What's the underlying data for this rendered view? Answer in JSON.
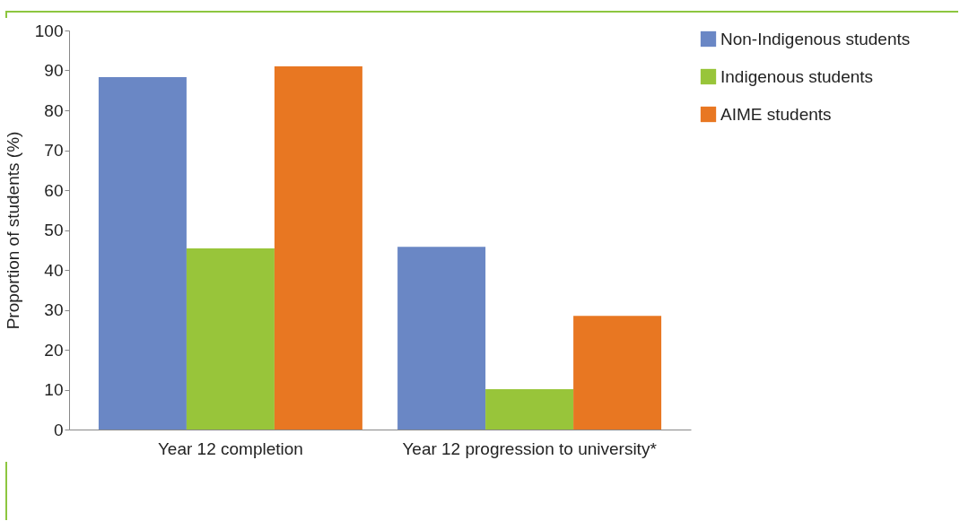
{
  "chart_data": {
    "type": "bar",
    "ylabel": "Proportion of students (%)",
    "categories": [
      "Year 12 completion",
      "Year 12 progression to university*"
    ],
    "series": [
      {
        "name": "Non-Indigenous students",
        "color": "#6a87c5",
        "values": [
          88.3,
          45.8
        ]
      },
      {
        "name": "Indigenous students",
        "color": "#98c53a",
        "values": [
          45.4,
          10.1
        ]
      },
      {
        "name": "AIME students",
        "color": "#e87722",
        "values": [
          91.0,
          28.5
        ]
      }
    ],
    "ylim": [
      0,
      100
    ],
    "yticks": [
      0,
      10,
      20,
      30,
      40,
      50,
      60,
      70,
      80,
      90,
      100
    ],
    "grid": false,
    "legend": "right"
  }
}
